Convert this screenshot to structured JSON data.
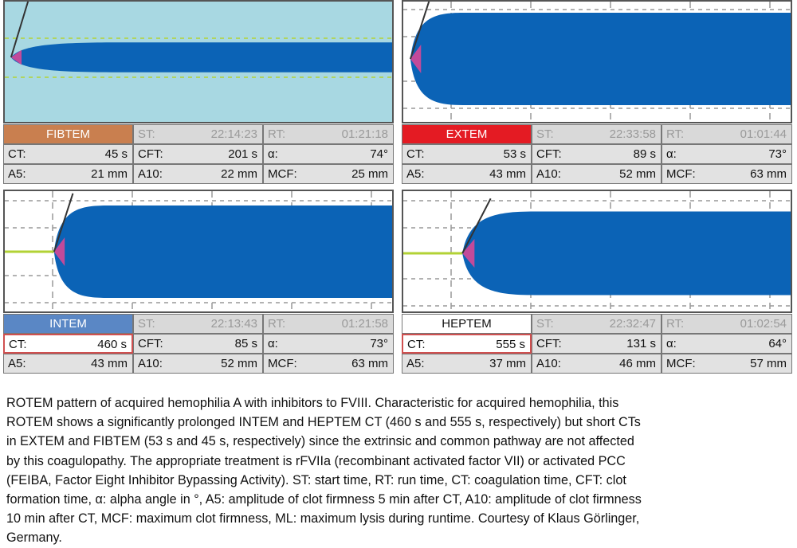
{
  "colors": {
    "clot": "#0b63b6",
    "angle_marker": "#c24a9a",
    "baseline": "#b2d235",
    "gridline": "#999999",
    "fibtem_bg": "#a8d8e2",
    "fibtem_header": "#c97f4f",
    "extem_header": "#e41b23",
    "intem_header": "#5a87c5",
    "heptem_header": "#ffffff"
  },
  "panels": [
    {
      "test": "FIBTEM",
      "st_label": "ST:",
      "st": "22:14:23",
      "rt_label": "RT:",
      "rt": "01:21:18",
      "ct_label": "CT:",
      "ct": "45 s",
      "cft_label": "CFT:",
      "cft": "201 s",
      "alpha_label": "α:",
      "alpha": "74°",
      "a5_label": "A5:",
      "a5": "21 mm",
      "a10_label": "A10:",
      "a10": "22 mm",
      "mcf_label": "MCF:",
      "mcf": "25 mm"
    },
    {
      "test": "EXTEM",
      "st_label": "ST:",
      "st": "22:33:58",
      "rt_label": "RT:",
      "rt": "01:01:44",
      "ct_label": "CT:",
      "ct": "53 s",
      "cft_label": "CFT:",
      "cft": "89 s",
      "alpha_label": "α:",
      "alpha": "73°",
      "a5_label": "A5:",
      "a5": "43 mm",
      "a10_label": "A10:",
      "a10": "52 mm",
      "mcf_label": "MCF:",
      "mcf": "63 mm"
    },
    {
      "test": "INTEM",
      "st_label": "ST:",
      "st": "22:13:43",
      "rt_label": "RT:",
      "rt": "01:21:58",
      "ct_label": "CT:",
      "ct": "460 s",
      "cft_label": "CFT:",
      "cft": "85 s",
      "alpha_label": "α:",
      "alpha": "73°",
      "a5_label": "A5:",
      "a5": "43 mm",
      "a10_label": "A10:",
      "a10": "52 mm",
      "mcf_label": "MCF:",
      "mcf": "63 mm"
    },
    {
      "test": "HEPTEM",
      "st_label": "ST:",
      "st": "22:32:47",
      "rt_label": "RT:",
      "rt": "01:02:54",
      "ct_label": "CT:",
      "ct": "555 s",
      "cft_label": "CFT:",
      "cft": "131 s",
      "alpha_label": "α:",
      "alpha": "64°",
      "a5_label": "A5:",
      "a5": "37 mm",
      "a10_label": "A10:",
      "a10": "46 mm",
      "mcf_label": "MCF:",
      "mcf": "57 mm"
    }
  ],
  "caption": [
    "ROTEM pattern of acquired hemophilia A with inhibitors to FVIII. Characteristic for acquired hemophilia, this",
    "ROTEM shows a significantly prolonged INTEM and HEPTEM CT (460 s and 555 s, respectively) but short CTs",
    "in EXTEM and FIBTEM (53 s and 45 s, respectively) since the extrinsic and common pathway are not affected",
    "by this coagulopathy. The appropriate treatment is rFVIIa (recombinant activated factor VII) or activated PCC",
    "(FEIBA, Factor Eight Inhibitor Bypassing Activity). ST: start time, RT: run time, CT: coagulation time, CFT: clot",
    "formation time, α: alpha angle in °, A5: amplitude of clot firmness 5 min after CT, A10: amplitude of clot firmness",
    "10 min after CT, MCF: maximum clot firmness, ML: maximum lysis during runtime. Courtesy of Klaus Görlinger,",
    "Germany."
  ],
  "chart_data": [
    {
      "type": "area",
      "test": "FIBTEM",
      "ct_s": 45,
      "cft_s": 201,
      "alpha_deg": 74,
      "a5_mm": 21,
      "a10_mm": 22,
      "mcf_mm": 25,
      "grid": true
    },
    {
      "type": "area",
      "test": "EXTEM",
      "ct_s": 53,
      "cft_s": 89,
      "alpha_deg": 73,
      "a5_mm": 43,
      "a10_mm": 52,
      "mcf_mm": 63,
      "grid": true
    },
    {
      "type": "area",
      "test": "INTEM",
      "ct_s": 460,
      "cft_s": 85,
      "alpha_deg": 73,
      "a5_mm": 43,
      "a10_mm": 52,
      "mcf_mm": 63,
      "grid": true
    },
    {
      "type": "area",
      "test": "HEPTEM",
      "ct_s": 555,
      "cft_s": 131,
      "alpha_deg": 64,
      "a5_mm": 37,
      "a10_mm": 46,
      "mcf_mm": 57,
      "grid": true
    }
  ]
}
